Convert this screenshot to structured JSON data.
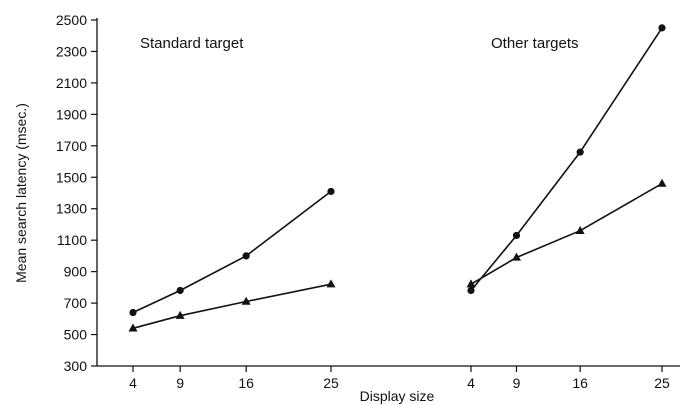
{
  "chart_data": {
    "type": "line",
    "xlabel": "Display size",
    "ylabel": "Mean search latency (msec.)",
    "ylim": [
      300,
      2500
    ],
    "yticks": [
      300,
      500,
      700,
      900,
      1100,
      1300,
      1500,
      1700,
      1900,
      2100,
      2300,
      2500
    ],
    "grid": false,
    "panels": [
      {
        "title": "Standard target",
        "x": [
          4,
          9,
          16,
          25
        ],
        "series": [
          {
            "marker": "circle",
            "values": [
              640,
              780,
              1000,
              1410
            ]
          },
          {
            "marker": "triangle",
            "values": [
              540,
              620,
              710,
              820
            ]
          }
        ]
      },
      {
        "title": "Other targets",
        "x": [
          4,
          9,
          16,
          25
        ],
        "series": [
          {
            "marker": "circle",
            "values": [
              780,
              1130,
              1660,
              2450
            ]
          },
          {
            "marker": "triangle",
            "values": [
              820,
              990,
              1160,
              1460
            ]
          }
        ]
      }
    ]
  }
}
